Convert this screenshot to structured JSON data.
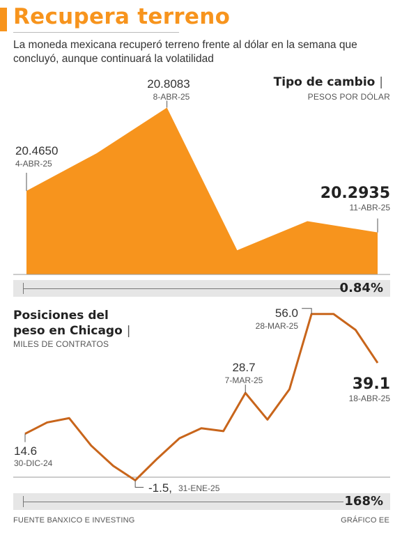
{
  "header": {
    "title": "Recupera terreno",
    "subtitle": "La moneda mexicana recuperó terreno frente al dólar en la semana que concluyó, aunque continuará la volatilidad"
  },
  "colors": {
    "accent": "#f7941d",
    "line": "#c8651b",
    "band": "#e6e6e6"
  },
  "chart_data": [
    {
      "type": "area",
      "title": "Tipo de cambio",
      "subtitle": "PESOS POR DÓLAR",
      "values": [
        20.465,
        20.62,
        20.8083,
        20.22,
        20.34,
        20.2935
      ],
      "annotations": [
        {
          "value": "20.4650",
          "date": "4-ABR-25",
          "index": 0
        },
        {
          "value": "20.8083",
          "date": "8-ABR-25",
          "index": 2
        },
        {
          "value": "20.2935",
          "date": "11-ABR-25",
          "index": 5
        }
      ],
      "change": "0.84%"
    },
    {
      "type": "line",
      "title_line1": "Posiciones del",
      "title_line2": "peso en Chicago",
      "subtitle": "MILES DE CONTRATOS",
      "values": [
        14.6,
        18.5,
        20.0,
        10.5,
        3.5,
        -1.5,
        6.0,
        13.0,
        16.5,
        15.5,
        28.7,
        19.5,
        30.0,
        56.0,
        56.0,
        50.5,
        39.1
      ],
      "annotations": [
        {
          "value": "14.6",
          "date": "30-DIC-24",
          "index": 0
        },
        {
          "value": "-1.5,",
          "date": "31-ENE-25",
          "index": 5
        },
        {
          "value": "28.7",
          "date": "7-MAR-25",
          "index": 10
        },
        {
          "value": "56.0",
          "date": "28-MAR-25",
          "index": 13
        },
        {
          "value": "39.1",
          "date": "18-ABR-25",
          "index": 16
        }
      ],
      "change": "168%"
    }
  ],
  "footer": {
    "source": "FUENTE BANXICO E INVESTING",
    "credit": "GRÁFICO EE"
  }
}
